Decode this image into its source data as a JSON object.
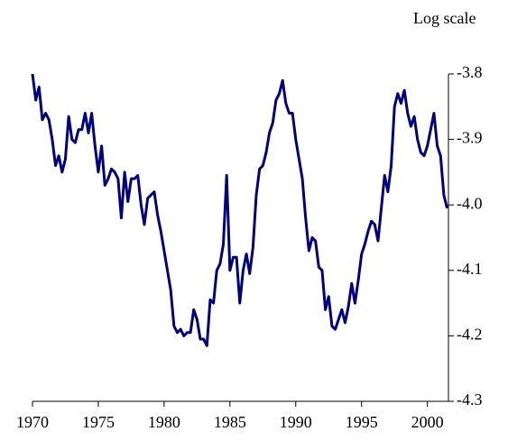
{
  "chart_data": {
    "type": "line",
    "axis_label": "Log scale",
    "x": [
      1970,
      1970.25,
      1970.5,
      1970.75,
      1971,
      1971.25,
      1971.5,
      1971.75,
      1972,
      1972.25,
      1972.5,
      1972.75,
      1973,
      1973.25,
      1973.5,
      1973.75,
      1974,
      1974.25,
      1974.5,
      1974.75,
      1975,
      1975.25,
      1975.5,
      1975.75,
      1976,
      1976.25,
      1976.5,
      1976.75,
      1977,
      1977.25,
      1977.5,
      1977.75,
      1978,
      1978.25,
      1978.5,
      1978.75,
      1979,
      1979.25,
      1979.5,
      1979.75,
      1980,
      1980.25,
      1980.5,
      1980.75,
      1981,
      1981.25,
      1981.5,
      1981.75,
      1982,
      1982.25,
      1982.5,
      1982.75,
      1983,
      1983.25,
      1983.5,
      1983.75,
      1984,
      1984.25,
      1984.5,
      1984.75,
      1985,
      1985.25,
      1985.5,
      1985.75,
      1986,
      1986.25,
      1986.5,
      1986.75,
      1987,
      1987.25,
      1987.5,
      1987.75,
      1988,
      1988.25,
      1988.5,
      1988.75,
      1989,
      1989.25,
      1989.5,
      1989.75,
      1990,
      1990.25,
      1990.5,
      1990.75,
      1991,
      1991.25,
      1991.5,
      1991.75,
      1992,
      1992.25,
      1992.5,
      1992.75,
      1993,
      1993.25,
      1993.5,
      1993.75,
      1994,
      1994.25,
      1994.5,
      1994.75,
      1995,
      1995.25,
      1995.5,
      1995.75,
      1996,
      1996.25,
      1996.5,
      1996.75,
      1997,
      1997.25,
      1997.5,
      1997.75,
      1998,
      1998.25,
      1998.5,
      1998.75,
      1999,
      1999.25,
      1999.5,
      1999.75,
      2000,
      2000.25,
      2000.5,
      2000.75,
      2001,
      2001.25,
      2001.5
    ],
    "series": [
      {
        "color": "#000080",
        "values": [
          -3.8,
          -3.84,
          -3.82,
          -3.87,
          -3.86,
          -3.87,
          -3.9,
          -3.94,
          -3.925,
          -3.95,
          -3.93,
          -3.865,
          -3.9,
          -3.905,
          -3.885,
          -3.885,
          -3.86,
          -3.89,
          -3.86,
          -3.91,
          -3.95,
          -3.91,
          -3.97,
          -3.96,
          -3.945,
          -3.95,
          -3.96,
          -4.02,
          -3.95,
          -3.995,
          -3.96,
          -3.96,
          -3.955,
          -4.0,
          -4.03,
          -3.99,
          -3.985,
          -3.98,
          -4.015,
          -4.04,
          -4.07,
          -4.1,
          -4.13,
          -4.185,
          -4.195,
          -4.19,
          -4.2,
          -4.195,
          -4.195,
          -4.16,
          -4.175,
          -4.205,
          -4.205,
          -4.215,
          -4.145,
          -4.15,
          -4.1,
          -4.09,
          -4.06,
          -3.955,
          -4.1,
          -4.08,
          -4.08,
          -4.15,
          -4.1,
          -4.075,
          -4.105,
          -4.065,
          -3.985,
          -3.945,
          -3.94,
          -3.92,
          -3.89,
          -3.875,
          -3.84,
          -3.83,
          -3.81,
          -3.845,
          -3.86,
          -3.86,
          -3.9,
          -3.93,
          -3.96,
          -4.02,
          -4.07,
          -4.05,
          -4.055,
          -4.095,
          -4.1,
          -4.16,
          -4.14,
          -4.185,
          -4.19,
          -4.175,
          -4.16,
          -4.18,
          -4.155,
          -4.12,
          -4.15,
          -4.115,
          -4.075,
          -4.06,
          -4.04,
          -4.025,
          -4.03,
          -4.055,
          -4.005,
          -3.955,
          -3.98,
          -3.94,
          -3.85,
          -3.83,
          -3.845,
          -3.825,
          -3.86,
          -3.88,
          -3.865,
          -3.9,
          -3.92,
          -3.925,
          -3.91,
          -3.885,
          -3.86,
          -3.91,
          -3.925,
          -3.985,
          -4.005
        ]
      }
    ],
    "xlim": [
      1970,
      2001.6
    ],
    "xticks": [
      1970,
      1975,
      1980,
      1985,
      1990,
      1995,
      2000
    ],
    "ylim": [
      -4.3,
      -3.8
    ],
    "yticks": [
      -3.8,
      -3.9,
      {
        "value": -4,
        "label": "-4.0"
      },
      -4.1,
      -4.2,
      -4.3
    ]
  }
}
